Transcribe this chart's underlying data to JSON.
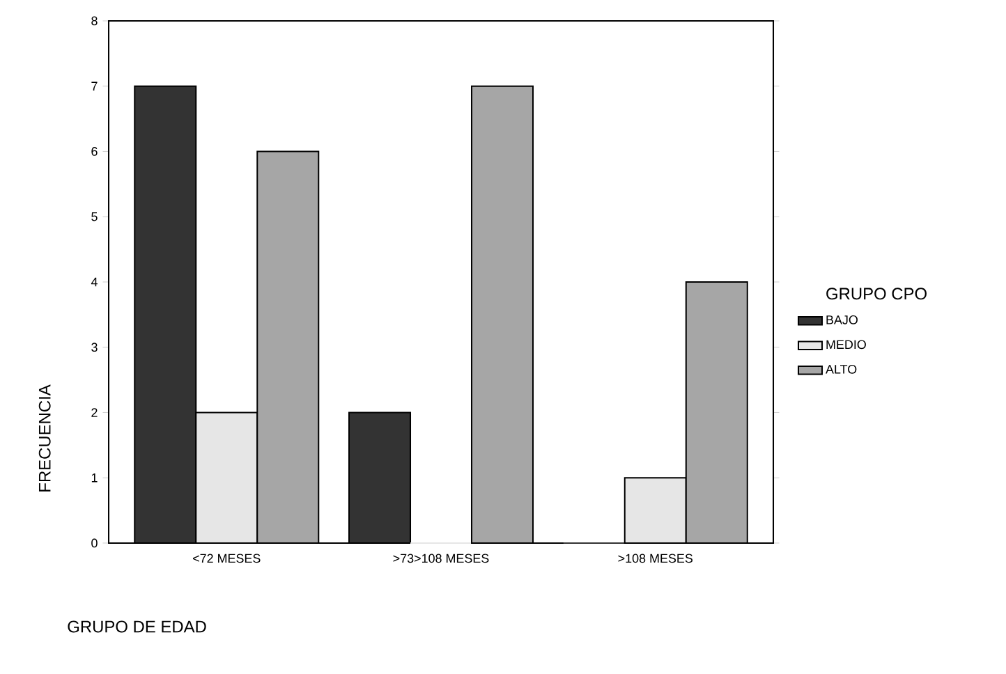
{
  "chart_data": {
    "type": "bar",
    "xlabel": "GRUPO DE EDAD",
    "ylabel": "FRECUENCIA",
    "legend_title": "GRUPO CPO",
    "categories": [
      "<72 MESES",
      ">73>108 MESES",
      ">108 MESES"
    ],
    "series": [
      {
        "name": "BAJO",
        "color": "#333333",
        "values": [
          7,
          2,
          0
        ]
      },
      {
        "name": "MEDIO",
        "color": "#e6e6e6",
        "values": [
          2,
          0,
          1
        ]
      },
      {
        "name": "ALTO",
        "color": "#a6a6a6",
        "values": [
          6,
          7,
          4
        ]
      }
    ],
    "ylim": [
      0,
      8
    ],
    "yticks": [
      0,
      1,
      2,
      3,
      4,
      5,
      6,
      7,
      8
    ],
    "grid": false,
    "legend": "right"
  }
}
